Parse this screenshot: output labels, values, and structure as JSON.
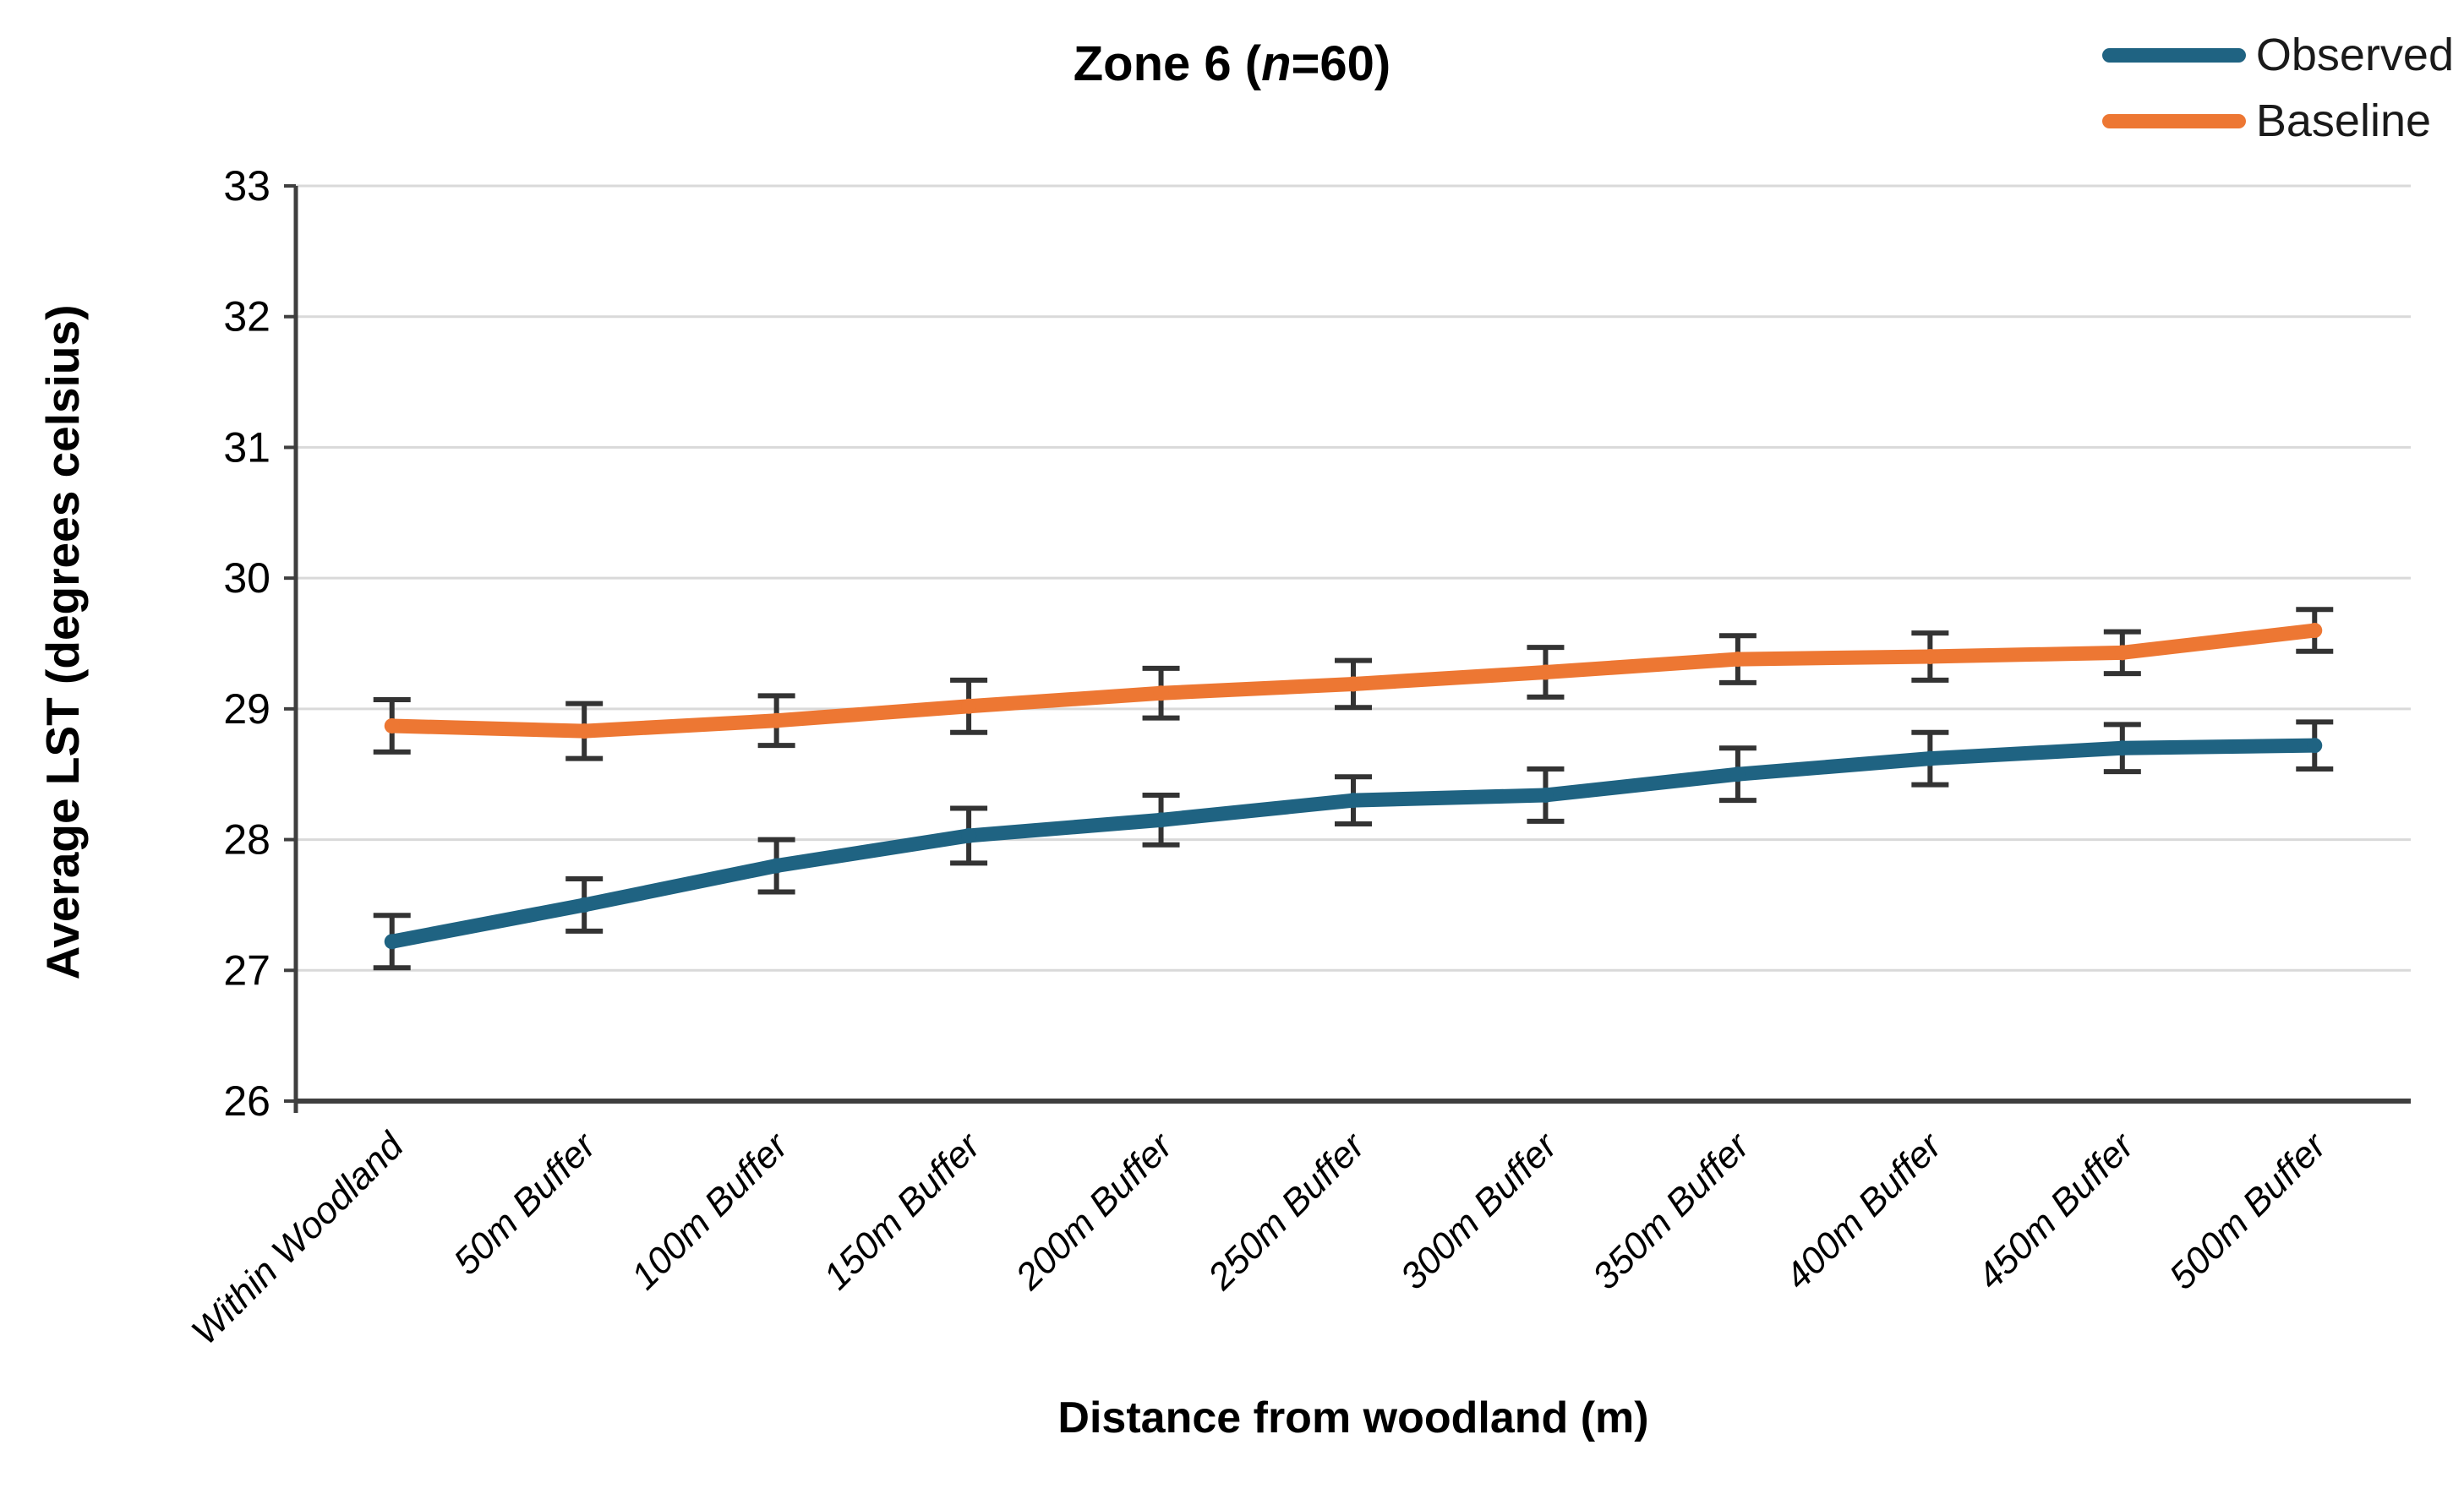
{
  "title": {
    "prefix": "Zone 6 (",
    "n": "n",
    "suffix": "=60)"
  },
  "x_axis": {
    "title": "Distance from woodland (m)"
  },
  "y_axis": {
    "title": "Average LST (degrees celsius)"
  },
  "colors": {
    "observed": "#1F6382",
    "baseline": "#ED7733",
    "gridline": "#D9D9D9",
    "axis": "#3F3F3F",
    "error_bar": "#333333",
    "text": "#000000"
  },
  "chart_data": {
    "type": "line",
    "title": "Zone 6 (n=60)",
    "xlabel": "Distance from woodland (m)",
    "ylabel": "Average LST (degrees celsius)",
    "ylim": [
      26,
      33
    ],
    "yticks": [
      26,
      27,
      28,
      29,
      30,
      31,
      32,
      33
    ],
    "grid": true,
    "legend_position": "top-right",
    "error_bars": true,
    "categories": [
      "Within Woodland",
      "50m Buffer",
      "100m Buffer",
      "150m Buffer",
      "200m Buffer",
      "250m Buffer",
      "300m Buffer",
      "350m Buffer",
      "400m Buffer",
      "450m Buffer",
      "500m Buffer"
    ],
    "series": [
      {
        "name": "Observed",
        "color": "#1F6382",
        "values": [
          27.22,
          27.5,
          27.8,
          28.03,
          28.15,
          28.3,
          28.34,
          28.5,
          28.62,
          28.7,
          28.72
        ],
        "errors": [
          0.2,
          0.2,
          0.2,
          0.21,
          0.19,
          0.18,
          0.2,
          0.2,
          0.2,
          0.18,
          0.18
        ]
      },
      {
        "name": "Baseline",
        "color": "#ED7733",
        "values": [
          28.87,
          28.83,
          28.91,
          29.02,
          29.12,
          29.19,
          29.28,
          29.38,
          29.4,
          29.43,
          29.6
        ],
        "errors": [
          0.2,
          0.21,
          0.19,
          0.2,
          0.19,
          0.18,
          0.19,
          0.18,
          0.18,
          0.16,
          0.16
        ]
      }
    ]
  }
}
